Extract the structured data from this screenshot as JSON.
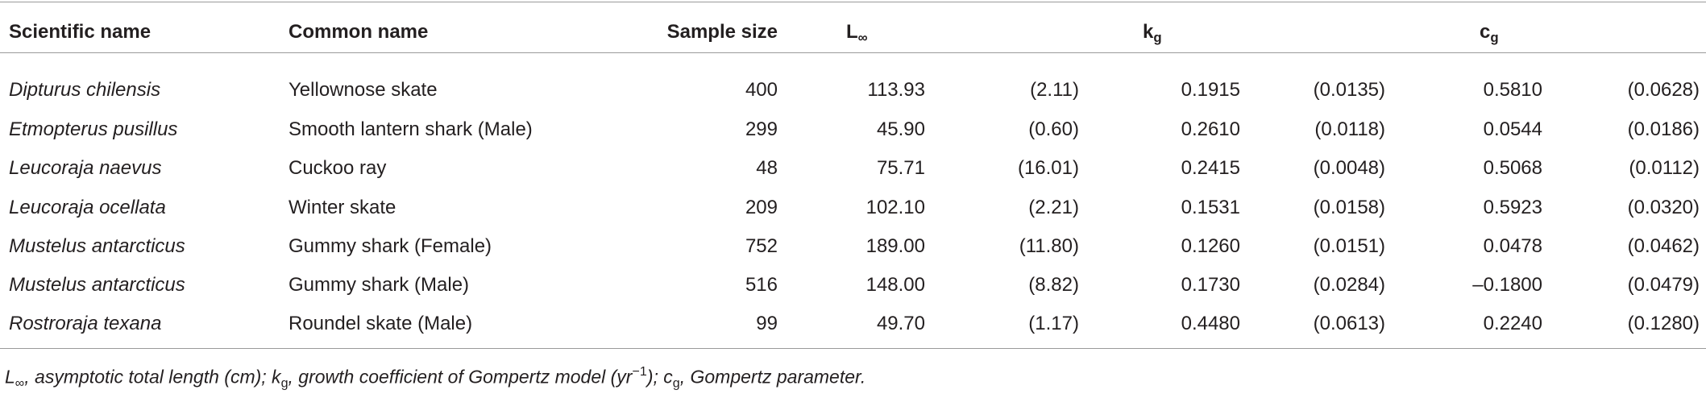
{
  "table": {
    "header": [
      {
        "text": "Scientific name"
      },
      {
        "text": "Common name"
      },
      {
        "text": "Sample size"
      },
      {
        "text": "L",
        "sub": "∞"
      },
      {
        "text": "k",
        "sub": "g"
      },
      {
        "text": "c",
        "sub": "g"
      }
    ],
    "rows": [
      [
        "Dipturus chilensis",
        "Yellownose skate",
        "400",
        "113.93",
        "(2.11)",
        "0.1915",
        "(0.0135)",
        "0.5810",
        "(0.0628)"
      ],
      [
        "Etmopterus pusillus",
        "Smooth lantern shark (Male)",
        "299",
        "45.90",
        "(0.60)",
        "0.2610",
        "(0.0118)",
        "0.0544",
        "(0.0186)"
      ],
      [
        "Leucoraja naevus",
        "Cuckoo ray",
        "48",
        "75.71",
        "(16.01)",
        "0.2415",
        "(0.0048)",
        "0.5068",
        "(0.0112)"
      ],
      [
        "Leucoraja ocellata",
        "Winter skate",
        "209",
        "102.10",
        "(2.21)",
        "0.1531",
        "(0.0158)",
        "0.5923",
        "(0.0320)"
      ],
      [
        "Mustelus antarcticus",
        "Gummy shark (Female)",
        "752",
        "189.00",
        "(11.80)",
        "0.1260",
        "(0.0151)",
        "0.0478",
        "(0.0462)"
      ],
      [
        "Mustelus antarcticus",
        "Gummy shark (Male)",
        "516",
        "148.00",
        "(8.82)",
        "0.1730",
        "(0.0284)",
        "–0.1800",
        "(0.0479)"
      ],
      [
        "Rostroraja texana",
        "Roundel skate (Male)",
        "99",
        "49.70",
        "(1.17)",
        "0.4480",
        "(0.0613)",
        "0.2240",
        "(0.1280)"
      ]
    ]
  },
  "footnote": [
    {
      "text": "L"
    },
    {
      "text": "∞",
      "kind": "sub"
    },
    {
      "text": ", asymptotic total length (cm); k"
    },
    {
      "text": "g",
      "kind": "sub"
    },
    {
      "text": ", growth coefficient of Gompertz model (yr"
    },
    {
      "text": "−1",
      "kind": "sup"
    },
    {
      "text": "); c"
    },
    {
      "text": "g",
      "kind": "sub"
    },
    {
      "text": ", Gompertz parameter."
    }
  ]
}
